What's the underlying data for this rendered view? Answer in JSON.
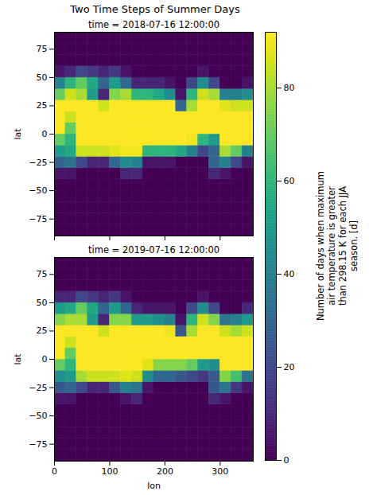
{
  "chart_data": {
    "type": "heatmap",
    "title": "Two Time Steps of Summer Days",
    "x_label": "lon",
    "y_label": "lat",
    "xlim": [
      0,
      360
    ],
    "ylim": [
      -90,
      90
    ],
    "xticks": [
      0,
      100,
      200,
      300
    ],
    "yticks": [
      -75,
      -50,
      -25,
      0,
      25,
      50,
      75
    ],
    "color": "viridis",
    "x": [
      10,
      30,
      50,
      70,
      90,
      110,
      130,
      150,
      170,
      190,
      210,
      230,
      250,
      270,
      290,
      310,
      330,
      350
    ],
    "y": [
      -85,
      -75,
      -65,
      -55,
      -45,
      -35,
      -25,
      -15,
      -5,
      5,
      15,
      25,
      35,
      45,
      55,
      65,
      75,
      85
    ],
    "panels": [
      {
        "title": "time = 2018-07-16 12:00:00",
        "tick_labels": "y",
        "cells": [
          [
            0,
            0,
            0,
            0,
            0,
            0,
            0,
            0,
            0,
            0,
            0,
            0,
            0,
            0,
            0,
            0,
            0,
            0
          ],
          [
            0,
            0,
            0,
            0,
            0,
            0,
            0,
            0,
            0,
            0,
            0,
            0,
            0,
            0,
            0,
            0,
            0,
            0
          ],
          [
            0,
            0,
            0,
            0,
            0,
            0,
            0,
            0,
            0,
            0,
            0,
            0,
            0,
            0,
            0,
            0,
            0,
            0
          ],
          [
            0,
            0,
            0,
            0,
            0,
            0,
            0,
            0,
            0,
            0,
            0,
            0,
            0,
            0,
            0,
            0,
            0,
            0
          ],
          [
            0,
            0,
            0,
            0,
            0,
            0,
            0,
            0,
            0,
            0,
            0,
            0,
            0,
            0,
            0,
            0,
            0,
            0
          ],
          [
            5,
            5,
            0,
            0,
            0,
            0,
            10,
            10,
            0,
            0,
            0,
            0,
            0,
            0,
            10,
            5,
            0,
            0
          ],
          [
            30,
            35,
            20,
            10,
            10,
            30,
            45,
            40,
            5,
            5,
            5,
            0,
            0,
            0,
            30,
            40,
            20,
            5
          ],
          [
            50,
            55,
            85,
            85,
            85,
            88,
            90,
            90,
            60,
            60,
            60,
            55,
            40,
            20,
            30,
            80,
            70,
            40
          ],
          [
            70,
            60,
            92,
            92,
            92,
            92,
            92,
            92,
            92,
            92,
            92,
            92,
            90,
            60,
            50,
            92,
            92,
            92
          ],
          [
            92,
            70,
            92,
            92,
            92,
            92,
            92,
            92,
            92,
            92,
            92,
            92,
            92,
            92,
            92,
            92,
            92,
            92
          ],
          [
            92,
            85,
            92,
            92,
            92,
            92,
            92,
            92,
            92,
            92,
            92,
            92,
            92,
            92,
            92,
            92,
            92,
            92
          ],
          [
            92,
            92,
            92,
            92,
            85,
            92,
            92,
            92,
            92,
            92,
            92,
            30,
            80,
            92,
            92,
            88,
            85,
            85
          ],
          [
            70,
            85,
            80,
            50,
            10,
            75,
            80,
            60,
            60,
            55,
            45,
            5,
            60,
            85,
            80,
            40,
            40,
            45
          ],
          [
            40,
            60,
            70,
            55,
            30,
            50,
            30,
            10,
            10,
            10,
            5,
            0,
            20,
            45,
            20,
            0,
            0,
            5
          ],
          [
            5,
            10,
            20,
            15,
            10,
            15,
            5,
            0,
            0,
            0,
            0,
            0,
            0,
            5,
            0,
            0,
            0,
            0
          ],
          [
            0,
            0,
            0,
            0,
            0,
            0,
            0,
            0,
            0,
            0,
            0,
            0,
            0,
            0,
            0,
            0,
            0,
            0
          ],
          [
            0,
            0,
            0,
            0,
            0,
            0,
            0,
            0,
            0,
            0,
            0,
            0,
            0,
            0,
            0,
            0,
            0,
            0
          ],
          [
            0,
            0,
            0,
            0,
            0,
            0,
            0,
            0,
            0,
            0,
            0,
            0,
            0,
            0,
            0,
            0,
            0,
            0
          ]
        ]
      },
      {
        "title": "time = 2019-07-16 12:00:00",
        "cells": [
          [
            0,
            0,
            0,
            0,
            0,
            0,
            0,
            0,
            0,
            0,
            0,
            0,
            0,
            0,
            0,
            0,
            0,
            0
          ],
          [
            0,
            0,
            0,
            0,
            0,
            0,
            0,
            0,
            0,
            0,
            0,
            0,
            0,
            0,
            0,
            0,
            0,
            0
          ],
          [
            0,
            0,
            0,
            0,
            0,
            0,
            0,
            0,
            0,
            0,
            0,
            0,
            0,
            0,
            0,
            0,
            0,
            0
          ],
          [
            0,
            0,
            0,
            0,
            0,
            0,
            0,
            0,
            0,
            0,
            0,
            0,
            0,
            0,
            0,
            0,
            0,
            0
          ],
          [
            0,
            0,
            0,
            0,
            0,
            0,
            0,
            0,
            0,
            0,
            0,
            0,
            0,
            0,
            0,
            0,
            0,
            0
          ],
          [
            5,
            5,
            0,
            0,
            0,
            0,
            5,
            10,
            0,
            0,
            0,
            0,
            0,
            0,
            10,
            5,
            0,
            0
          ],
          [
            25,
            30,
            20,
            10,
            10,
            25,
            40,
            35,
            5,
            0,
            0,
            0,
            0,
            0,
            25,
            35,
            15,
            5
          ],
          [
            45,
            50,
            80,
            85,
            85,
            85,
            88,
            85,
            45,
            30,
            30,
            25,
            20,
            15,
            25,
            75,
            65,
            35
          ],
          [
            70,
            60,
            92,
            92,
            92,
            92,
            92,
            92,
            88,
            75,
            75,
            75,
            70,
            50,
            45,
            92,
            92,
            92
          ],
          [
            92,
            70,
            92,
            92,
            92,
            92,
            92,
            92,
            92,
            92,
            92,
            92,
            92,
            92,
            92,
            92,
            92,
            92
          ],
          [
            92,
            85,
            92,
            92,
            92,
            92,
            92,
            92,
            92,
            92,
            92,
            92,
            92,
            92,
            92,
            92,
            92,
            92
          ],
          [
            92,
            92,
            92,
            92,
            85,
            92,
            92,
            92,
            92,
            92,
            90,
            25,
            80,
            92,
            92,
            85,
            80,
            85
          ],
          [
            75,
            80,
            80,
            50,
            10,
            75,
            75,
            50,
            50,
            45,
            40,
            5,
            60,
            85,
            75,
            35,
            40,
            50
          ],
          [
            50,
            55,
            70,
            55,
            30,
            50,
            30,
            10,
            5,
            5,
            5,
            0,
            20,
            45,
            20,
            0,
            0,
            10
          ],
          [
            10,
            10,
            20,
            15,
            10,
            15,
            5,
            0,
            0,
            0,
            0,
            0,
            0,
            5,
            0,
            0,
            0,
            0
          ],
          [
            0,
            0,
            0,
            0,
            0,
            0,
            0,
            0,
            0,
            0,
            0,
            0,
            0,
            0,
            0,
            0,
            0,
            0
          ],
          [
            0,
            0,
            0,
            0,
            0,
            0,
            0,
            0,
            0,
            0,
            0,
            0,
            0,
            0,
            0,
            0,
            0,
            0
          ],
          [
            0,
            0,
            0,
            0,
            0,
            0,
            0,
            0,
            0,
            0,
            0,
            0,
            0,
            0,
            0,
            0,
            0,
            0
          ]
        ]
      }
    ],
    "colorbar": {
      "label": "Number of days when maximum air temperature is greater than 298.15 K for each JJA season. [d]",
      "range": [
        0,
        92
      ],
      "ticks": [
        0,
        20,
        40,
        60,
        80
      ]
    }
  }
}
